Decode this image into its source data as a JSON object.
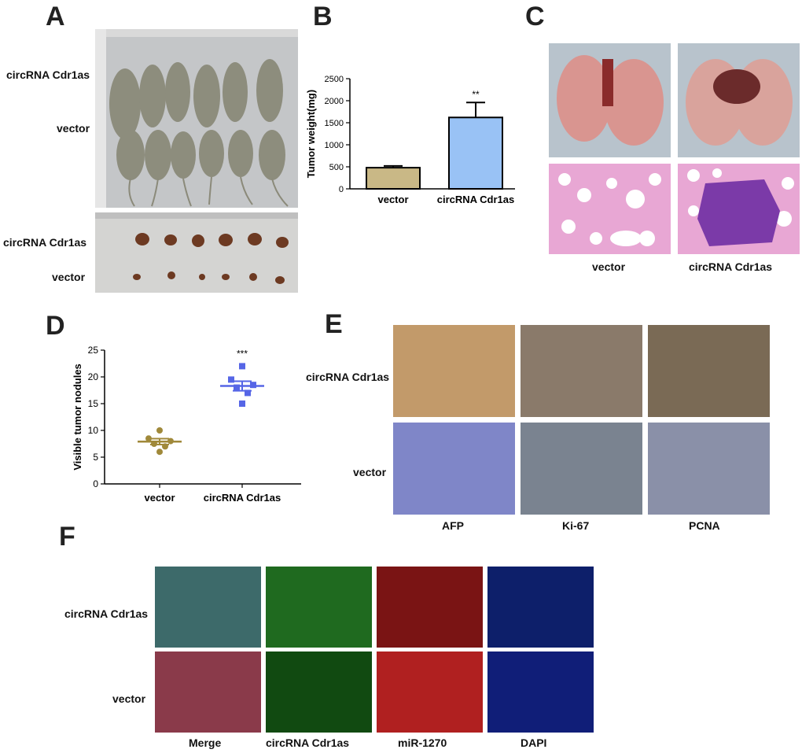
{
  "panels": {
    "A": {
      "letter": "A",
      "row_top": "circRNA Cdr1as",
      "row_bottom": "vector",
      "tumor_top": "circRNA Cdr1as",
      "tumor_bottom": "vector"
    },
    "B": {
      "letter": "B"
    },
    "C": {
      "letter": "C",
      "x_left": "vector",
      "x_right": "circRNA Cdr1as"
    },
    "D": {
      "letter": "D"
    },
    "E": {
      "letter": "E",
      "row_top": "circRNA Cdr1as",
      "row_bottom": "vector",
      "cols": [
        "AFP",
        "Ki-67",
        "PCNA"
      ]
    },
    "F": {
      "letter": "F",
      "row_top": "circRNA Cdr1as",
      "row_bottom": "vector",
      "cols": [
        "Merge",
        "circRNA Cdr1as",
        "miR-1270",
        "DAPI"
      ]
    }
  },
  "chart_data": [
    {
      "panel": "B",
      "type": "bar",
      "categories": [
        "vector",
        "circRNA Cdr1as"
      ],
      "values": [
        480,
        1620
      ],
      "errors": [
        40,
        340
      ],
      "ylabel": "Tumor weight(mg)",
      "ylim": [
        0,
        2500
      ],
      "yticks": [
        0,
        500,
        1000,
        1500,
        2000,
        2500
      ],
      "annotations": [
        "**"
      ],
      "colors": [
        "#c9b886",
        "#99c2f5"
      ]
    },
    {
      "panel": "D",
      "type": "scatter",
      "categories": [
        "vector",
        "circRNA Cdr1as"
      ],
      "series": [
        {
          "values": [
            10,
            8.5,
            8,
            7.5,
            7,
            6
          ],
          "mean": 7.9,
          "sem": 0.55,
          "color": "#a0893a"
        },
        {
          "values": [
            22,
            19.5,
            18.5,
            18,
            17,
            15
          ],
          "mean": 18.3,
          "sem": 0.9,
          "color": "#5666e6"
        }
      ],
      "ylabel": "Visible tumor nodules",
      "ylim": [
        0,
        25
      ],
      "yticks": [
        0,
        5,
        10,
        15,
        20,
        25
      ],
      "annotations": [
        "***"
      ]
    }
  ]
}
